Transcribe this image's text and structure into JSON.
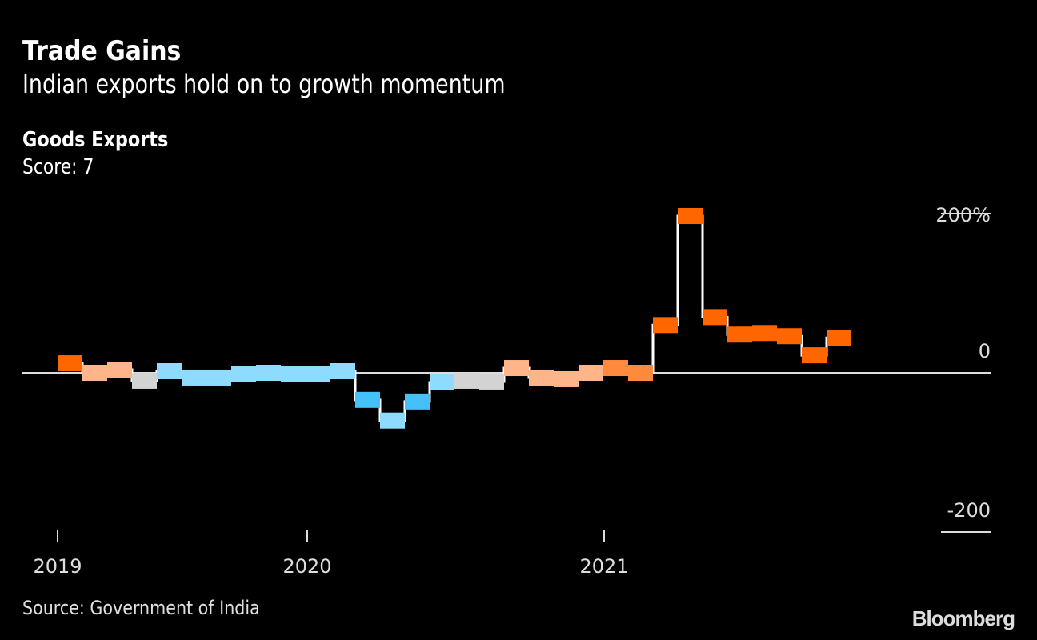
{
  "header": {
    "title": "Trade Gains",
    "subtitle": "Indian exports hold on to growth momentum"
  },
  "chart_data": {
    "type": "bar",
    "title": "Goods Exports",
    "subtitle": "Score: 7",
    "unit": "%",
    "x": [
      "2019-01",
      "2019-02",
      "2019-03",
      "2019-04",
      "2019-05",
      "2019-06",
      "2019-07",
      "2019-08",
      "2019-09",
      "2019-10",
      "2019-11",
      "2019-12",
      "2020-01",
      "2020-02",
      "2020-03",
      "2020-04",
      "2020-05",
      "2020-06",
      "2020-07",
      "2020-08",
      "2020-09",
      "2020-10",
      "2020-11",
      "2020-12",
      "2021-01",
      "2021-02",
      "2021-03",
      "2021-04",
      "2021-05",
      "2021-06",
      "2021-07",
      "2021-08"
    ],
    "values": [
      12,
      0,
      4,
      -10,
      2,
      -6,
      -6,
      -2,
      0,
      -2,
      -2,
      2,
      -34,
      -60,
      -36,
      -12,
      -10,
      -11,
      6,
      -6,
      -8,
      0,
      6,
      0,
      60,
      197,
      70,
      48,
      50,
      46,
      22,
      44
    ],
    "colors": [
      "#ff6600",
      "#ffb589",
      "#ffb589",
      "#d3d3d3",
      "#8fdbff",
      "#8fdbff",
      "#8fdbff",
      "#8fdbff",
      "#8fdbff",
      "#8fdbff",
      "#8fdbff",
      "#8fdbff",
      "#45c1f9",
      "#8fdbff",
      "#45c1f9",
      "#8fdbff",
      "#d3d3d3",
      "#d3d3d3",
      "#ffb589",
      "#ffb589",
      "#ffb589",
      "#ffb589",
      "#ff8a3d",
      "#ff8a3d",
      "#ff6600",
      "#ff6600",
      "#ff6600",
      "#ff6600",
      "#ff6600",
      "#ff6600",
      "#ff6600",
      "#ff6600"
    ],
    "ylim": [
      -200,
      200
    ],
    "yticks": [
      "200%",
      "0",
      "-200"
    ],
    "xticks": [
      "2019",
      "2020",
      "2021"
    ],
    "grid": false,
    "legend": "none",
    "source": "Source: Government of India"
  },
  "logo": "Bloomberg"
}
